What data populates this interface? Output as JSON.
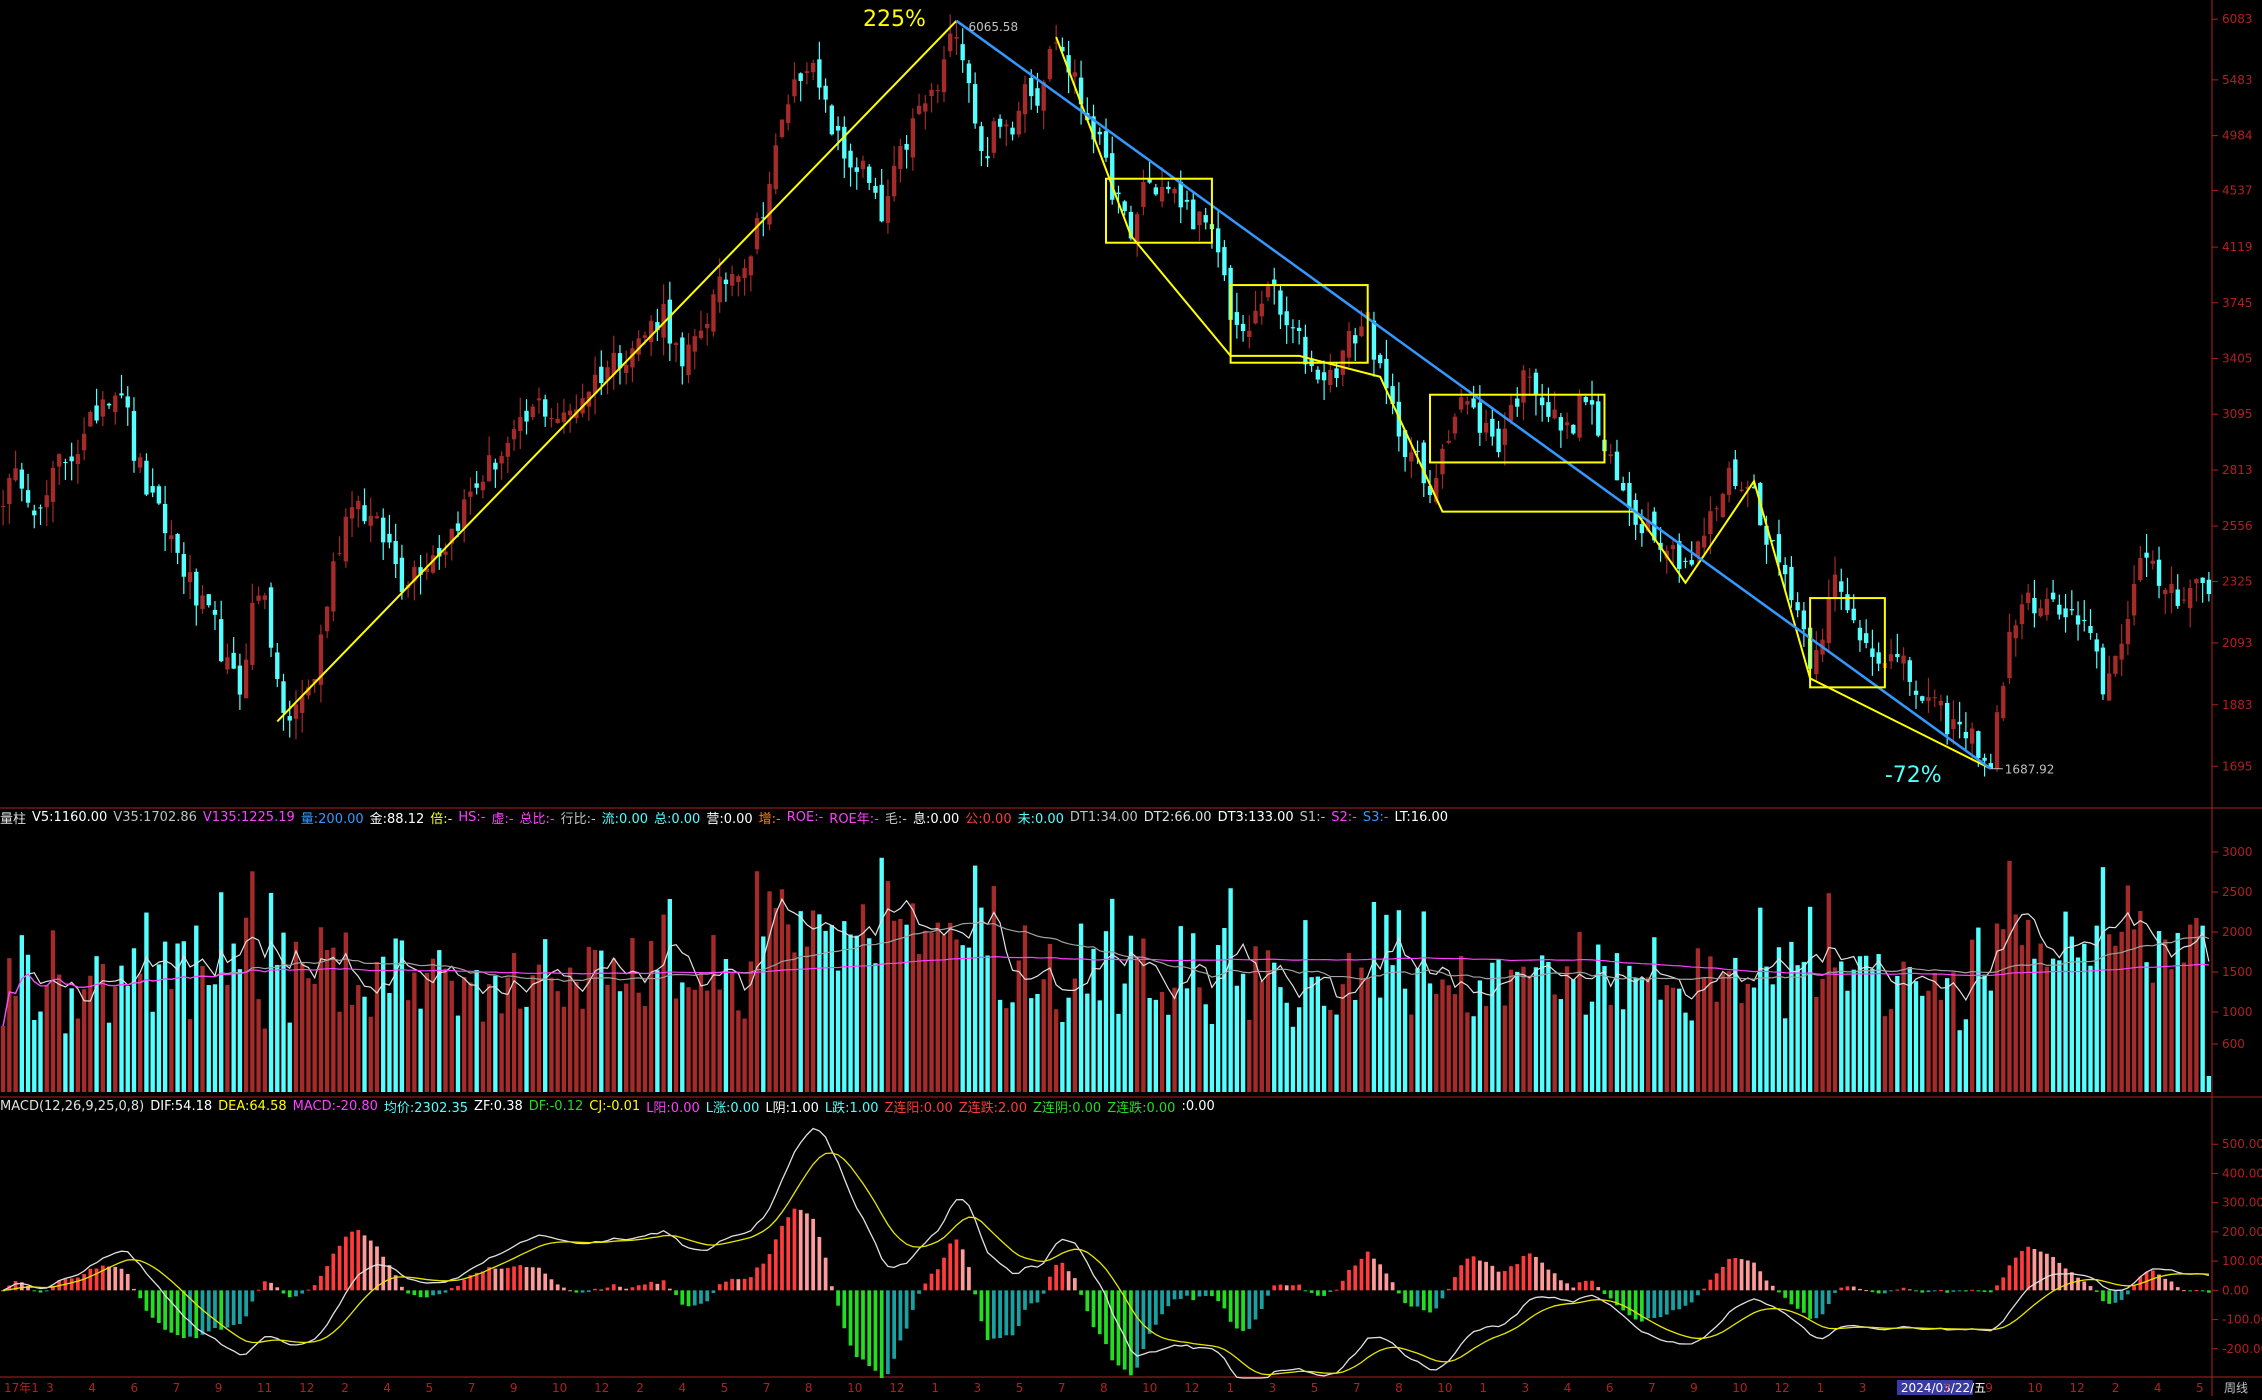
{
  "colors": {
    "background": "#000000",
    "up": "#ff3b3b",
    "up_dark": "#a52a2a",
    "down": "#54ffff",
    "axis": "#b02020",
    "annotation": "#ffff00",
    "trendline": "#3399ff",
    "ma_white": "#e0e0e0",
    "ma_magenta": "#ff40ff",
    "ma_yellow": "#e6e600",
    "label_gray": "#c0c0c0"
  },
  "annotations": {
    "rise_pct": "225%",
    "fall_pct": "-72%",
    "high_label": "6065.58",
    "low_label": "1687.92"
  },
  "axis": {
    "date_ticks": [
      "17年1",
      "3",
      "4",
      "6",
      "7",
      "9",
      "11",
      "12",
      "2",
      "4",
      "5",
      "7",
      "9",
      "10",
      "12",
      "2",
      "4",
      "5",
      "7",
      "8",
      "10",
      "12",
      "1",
      "3",
      "5",
      "7",
      "8",
      "10",
      "12",
      "1",
      "3",
      "5",
      "7",
      "8",
      "10",
      "1",
      "3",
      "4",
      "6",
      "7",
      "9",
      "10",
      "12",
      "1",
      "3",
      "2024/03/22/五",
      "7",
      "9",
      "10",
      "12",
      "2",
      "4",
      "5"
    ],
    "corner_label": "周线"
  },
  "volume_header": {
    "items": [
      {
        "label": "量柱",
        "value": ""
      },
      {
        "label": "V5:",
        "value": "1160.00"
      },
      {
        "label": "V35:",
        "value": "1702.86"
      },
      {
        "label": "V135:",
        "value": "1225.19"
      },
      {
        "label": "量:",
        "value": "200.00"
      },
      {
        "label": "金:",
        "value": "88.12"
      },
      {
        "label": "倍:",
        "value": "-"
      },
      {
        "label": "HS:",
        "value": "-"
      },
      {
        "label": "虚:",
        "value": "-"
      },
      {
        "label": "总比:",
        "value": "-"
      },
      {
        "label": "行比:",
        "value": "-"
      },
      {
        "label": "流:",
        "value": "0.00"
      },
      {
        "label": "总:",
        "value": "0.00"
      },
      {
        "label": "营:",
        "value": "0.00"
      },
      {
        "label": "增:",
        "value": "-"
      },
      {
        "label": "ROE:",
        "value": "-"
      },
      {
        "label": "ROE年:",
        "value": "-"
      },
      {
        "label": "毛:",
        "value": "-"
      },
      {
        "label": "息:",
        "value": "0.00"
      },
      {
        "label": "公:",
        "value": "0.00"
      },
      {
        "label": "未:",
        "value": "0.00"
      },
      {
        "label": "DT1:",
        "value": "34.00"
      },
      {
        "label": "DT2:",
        "value": "66.00"
      },
      {
        "label": "DT3:",
        "value": "133.00"
      },
      {
        "label": "S1:",
        "value": "-"
      },
      {
        "label": "S2:",
        "value": "-"
      },
      {
        "label": "S3:",
        "value": "-"
      },
      {
        "label": "LT:",
        "value": "16.00"
      }
    ]
  },
  "macd_header": {
    "items": [
      {
        "label": "MACD(12,26,9,25,0,8)",
        "value": ""
      },
      {
        "label": "DIF:",
        "value": "54.18"
      },
      {
        "label": "DEA:",
        "value": "64.58"
      },
      {
        "label": "MACD:",
        "value": "-20.80"
      },
      {
        "label": "均价:",
        "value": "2302.35"
      },
      {
        "label": "ZF:",
        "value": "0.38"
      },
      {
        "label": "DF:",
        "value": "-0.12"
      },
      {
        "label": "CJ:",
        "value": "-0.01"
      },
      {
        "label": "L阳:",
        "value": "0.00"
      },
      {
        "label": "L涨:",
        "value": "0.00"
      },
      {
        "label": "L阴:",
        "value": "1.00"
      },
      {
        "label": "L跌:",
        "value": "1.00"
      },
      {
        "label": "Z连阳:",
        "value": "0.00"
      },
      {
        "label": "Z连跌:",
        "value": "2.00"
      },
      {
        "label": "Z连阴:",
        "value": "0.00"
      },
      {
        "label": "Z连跌:",
        "value": "0.00"
      },
      {
        "label": ":",
        "value": "0.00"
      }
    ]
  },
  "chart_data": [
    {
      "type": "candlestick",
      "title": "",
      "y_ticks": [
        6083,
        5483,
        4984,
        4537,
        4119,
        3745,
        3405,
        3095,
        2813,
        2556,
        2325,
        2093,
        1883,
        1695
      ],
      "ylim": [
        1600,
        6200
      ],
      "scale": "log",
      "anchors": [
        [
          0,
          2700
        ],
        [
          3,
          2790
        ],
        [
          6,
          2600
        ],
        [
          9,
          2850
        ],
        [
          13,
          2950
        ],
        [
          16,
          3200
        ],
        [
          19,
          3250
        ],
        [
          21,
          2900
        ],
        [
          24,
          2650
        ],
        [
          27,
          2500
        ],
        [
          29,
          2380
        ],
        [
          31,
          2250
        ],
        [
          34,
          2150
        ],
        [
          36,
          2000
        ],
        [
          38,
          1930
        ],
        [
          40,
          2220
        ],
        [
          42,
          2300
        ],
        [
          44,
          1920
        ],
        [
          46,
          1830
        ],
        [
          48,
          1900
        ],
        [
          50,
          1980
        ],
        [
          53,
          2380
        ],
        [
          56,
          2700
        ],
        [
          59,
          2580
        ],
        [
          62,
          2470
        ],
        [
          64,
          2330
        ],
        [
          67,
          2400
        ],
        [
          71,
          2480
        ],
        [
          75,
          2700
        ],
        [
          78,
          2830
        ],
        [
          82,
          2960
        ],
        [
          86,
          3150
        ],
        [
          90,
          3060
        ],
        [
          94,
          3250
        ],
        [
          98,
          3400
        ],
        [
          102,
          3500
        ],
        [
          106,
          3700
        ],
        [
          109,
          3320
        ],
        [
          112,
          3600
        ],
        [
          116,
          3900
        ],
        [
          120,
          4100
        ],
        [
          123,
          4600
        ],
        [
          126,
          5300
        ],
        [
          129,
          5700
        ],
        [
          132,
          5200
        ],
        [
          135,
          4800
        ],
        [
          138,
          4700
        ],
        [
          141,
          4300
        ],
        [
          144,
          4800
        ],
        [
          147,
          5200
        ],
        [
          150,
          5400
        ],
        [
          153,
          6050
        ],
        [
          155,
          5500
        ],
        [
          157,
          4800
        ],
        [
          159,
          5000
        ],
        [
          162,
          5100
        ],
        [
          164,
          5500
        ],
        [
          166,
          5350
        ],
        [
          169,
          5900
        ],
        [
          171,
          5600
        ],
        [
          173,
          5300
        ],
        [
          175,
          5050
        ],
        [
          177,
          4700
        ],
        [
          179,
          4450
        ],
        [
          181,
          4150
        ],
        [
          183,
          4600
        ],
        [
          186,
          4550
        ],
        [
          189,
          4450
        ],
        [
          192,
          4300
        ],
        [
          195,
          4100
        ],
        [
          197,
          3700
        ],
        [
          199,
          3500
        ],
        [
          201,
          3650
        ],
        [
          203,
          3900
        ],
        [
          205,
          3650
        ],
        [
          208,
          3500
        ],
        [
          210,
          3350
        ],
        [
          213,
          3300
        ],
        [
          216,
          3500
        ],
        [
          219,
          3650
        ],
        [
          221,
          3300
        ],
        [
          223,
          3100
        ],
        [
          225,
          2950
        ],
        [
          227,
          2850
        ],
        [
          229,
          2650
        ],
        [
          231,
          2950
        ],
        [
          234,
          3180
        ],
        [
          237,
          3050
        ],
        [
          240,
          2950
        ],
        [
          243,
          3200
        ],
        [
          245,
          3350
        ],
        [
          248,
          3100
        ],
        [
          251,
          3000
        ],
        [
          254,
          3200
        ],
        [
          257,
          2900
        ],
        [
          259,
          2750
        ],
        [
          262,
          2600
        ],
        [
          265,
          2550
        ],
        [
          268,
          2450
        ],
        [
          271,
          2400
        ],
        [
          274,
          2580
        ],
        [
          277,
          2780
        ],
        [
          279,
          2760
        ],
        [
          281,
          2700
        ],
        [
          284,
          2450
        ],
        [
          287,
          2300
        ],
        [
          290,
          2050
        ],
        [
          292,
          2150
        ],
        [
          294,
          2320
        ],
        [
          296,
          2200
        ],
        [
          299,
          2100
        ],
        [
          302,
          2050
        ],
        [
          305,
          2000
        ],
        [
          308,
          1900
        ],
        [
          311,
          1850
        ],
        [
          314,
          1800
        ],
        [
          317,
          1760
        ],
        [
          319,
          1690
        ],
        [
          321,
          1980
        ],
        [
          323,
          2200
        ],
        [
          326,
          2250
        ],
        [
          329,
          2220
        ],
        [
          332,
          2180
        ],
        [
          335,
          2100
        ],
        [
          337,
          1950
        ],
        [
          339,
          2030
        ],
        [
          341,
          2220
        ],
        [
          343,
          2400
        ],
        [
          346,
          2330
        ],
        [
          349,
          2280
        ],
        [
          352,
          2320
        ],
        [
          354,
          2290
        ]
      ],
      "high_value": 6065.58,
      "low_value": 1687.92,
      "bar_count": 355
    },
    {
      "type": "volume_bar",
      "y_ticks": [
        3000,
        2500,
        2000,
        1500,
        1000,
        600
      ],
      "ylim": [
        0,
        3300
      ],
      "series": [
        {
          "name": "V5",
          "value": 1160.0
        },
        {
          "name": "V35",
          "value": 1702.86
        },
        {
          "name": "V135",
          "value": 1225.19
        }
      ]
    },
    {
      "type": "macd",
      "y_ticks": [
        500.0,
        400.0,
        300.0,
        200.0,
        100.0,
        0.0,
        -100.0,
        -200.0
      ],
      "ylim": [
        -300,
        600
      ],
      "series": [
        {
          "name": "DIF",
          "value": 54.18
        },
        {
          "name": "DEA",
          "value": 64.58
        },
        {
          "name": "MACD",
          "value": -20.8
        }
      ]
    }
  ]
}
